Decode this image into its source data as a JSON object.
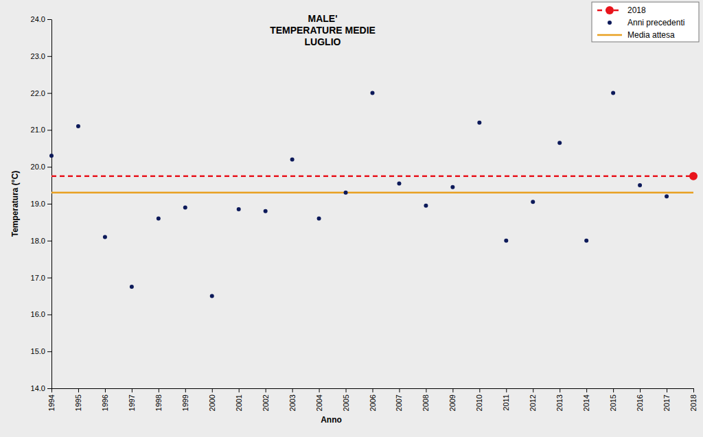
{
  "chart_data": {
    "type": "scatter",
    "title": [
      "MALE'",
      "TEMPERATURE MEDIE",
      "LUGLIO"
    ],
    "xlabel": "Anno",
    "ylabel": "Temperatura (°C)",
    "x": [
      1994,
      1995,
      1996,
      1997,
      1998,
      1999,
      2000,
      2001,
      2002,
      2003,
      2004,
      2005,
      2006,
      2007,
      2008,
      2009,
      2010,
      2011,
      2012,
      2013,
      2014,
      2015,
      2016,
      2017,
      2018
    ],
    "series": [
      {
        "name": "2018",
        "color": "#e8141c",
        "type": "scatter",
        "marker": "circle",
        "line_style": "dashed",
        "values": [
          null,
          null,
          null,
          null,
          null,
          null,
          null,
          null,
          null,
          null,
          null,
          null,
          null,
          null,
          null,
          null,
          null,
          null,
          null,
          null,
          null,
          null,
          null,
          null,
          19.75
        ]
      },
      {
        "name": "Anni precedenti",
        "color": "#0d1a5a",
        "type": "scatter",
        "marker": "circle",
        "values": [
          20.3,
          21.1,
          18.1,
          16.75,
          18.6,
          18.9,
          16.5,
          18.85,
          18.8,
          20.2,
          18.6,
          19.3,
          22.0,
          19.55,
          18.95,
          19.45,
          21.2,
          18.0,
          19.05,
          20.65,
          18.0,
          22.0,
          19.5,
          19.2,
          null
        ]
      },
      {
        "name": "Media attesa",
        "color": "#e8a020",
        "type": "line",
        "line_style": "solid",
        "values": [
          19.3,
          19.3,
          19.3,
          19.3,
          19.3,
          19.3,
          19.3,
          19.3,
          19.3,
          19.3,
          19.3,
          19.3,
          19.3,
          19.3,
          19.3,
          19.3,
          19.3,
          19.3,
          19.3,
          19.3,
          19.3,
          19.3,
          19.3,
          19.3,
          19.3
        ]
      }
    ],
    "xlim": [
      1994,
      2018
    ],
    "xticks": [
      1994,
      1995,
      1996,
      1997,
      1998,
      1999,
      2000,
      2001,
      2002,
      2003,
      2004,
      2005,
      2006,
      2007,
      2008,
      2009,
      2010,
      2011,
      2012,
      2013,
      2014,
      2015,
      2016,
      2017,
      2018
    ],
    "ylim": [
      14,
      24
    ],
    "yticks": [
      {
        "value": 14,
        "label": "14.0"
      },
      {
        "value": 15,
        "label": "15.0"
      },
      {
        "value": 16,
        "label": "16.0"
      },
      {
        "value": 17,
        "label": "17.0"
      },
      {
        "value": 18,
        "label": "18.0"
      },
      {
        "value": 19,
        "label": "19.0"
      },
      {
        "value": 20,
        "label": "20.0"
      },
      {
        "value": 21,
        "label": "21.0"
      },
      {
        "value": 22,
        "label": "22.0"
      },
      {
        "value": 23,
        "label": "23.0"
      },
      {
        "value": 24,
        "label": "24.0"
      }
    ],
    "grid": false,
    "legend": "upper right"
  }
}
